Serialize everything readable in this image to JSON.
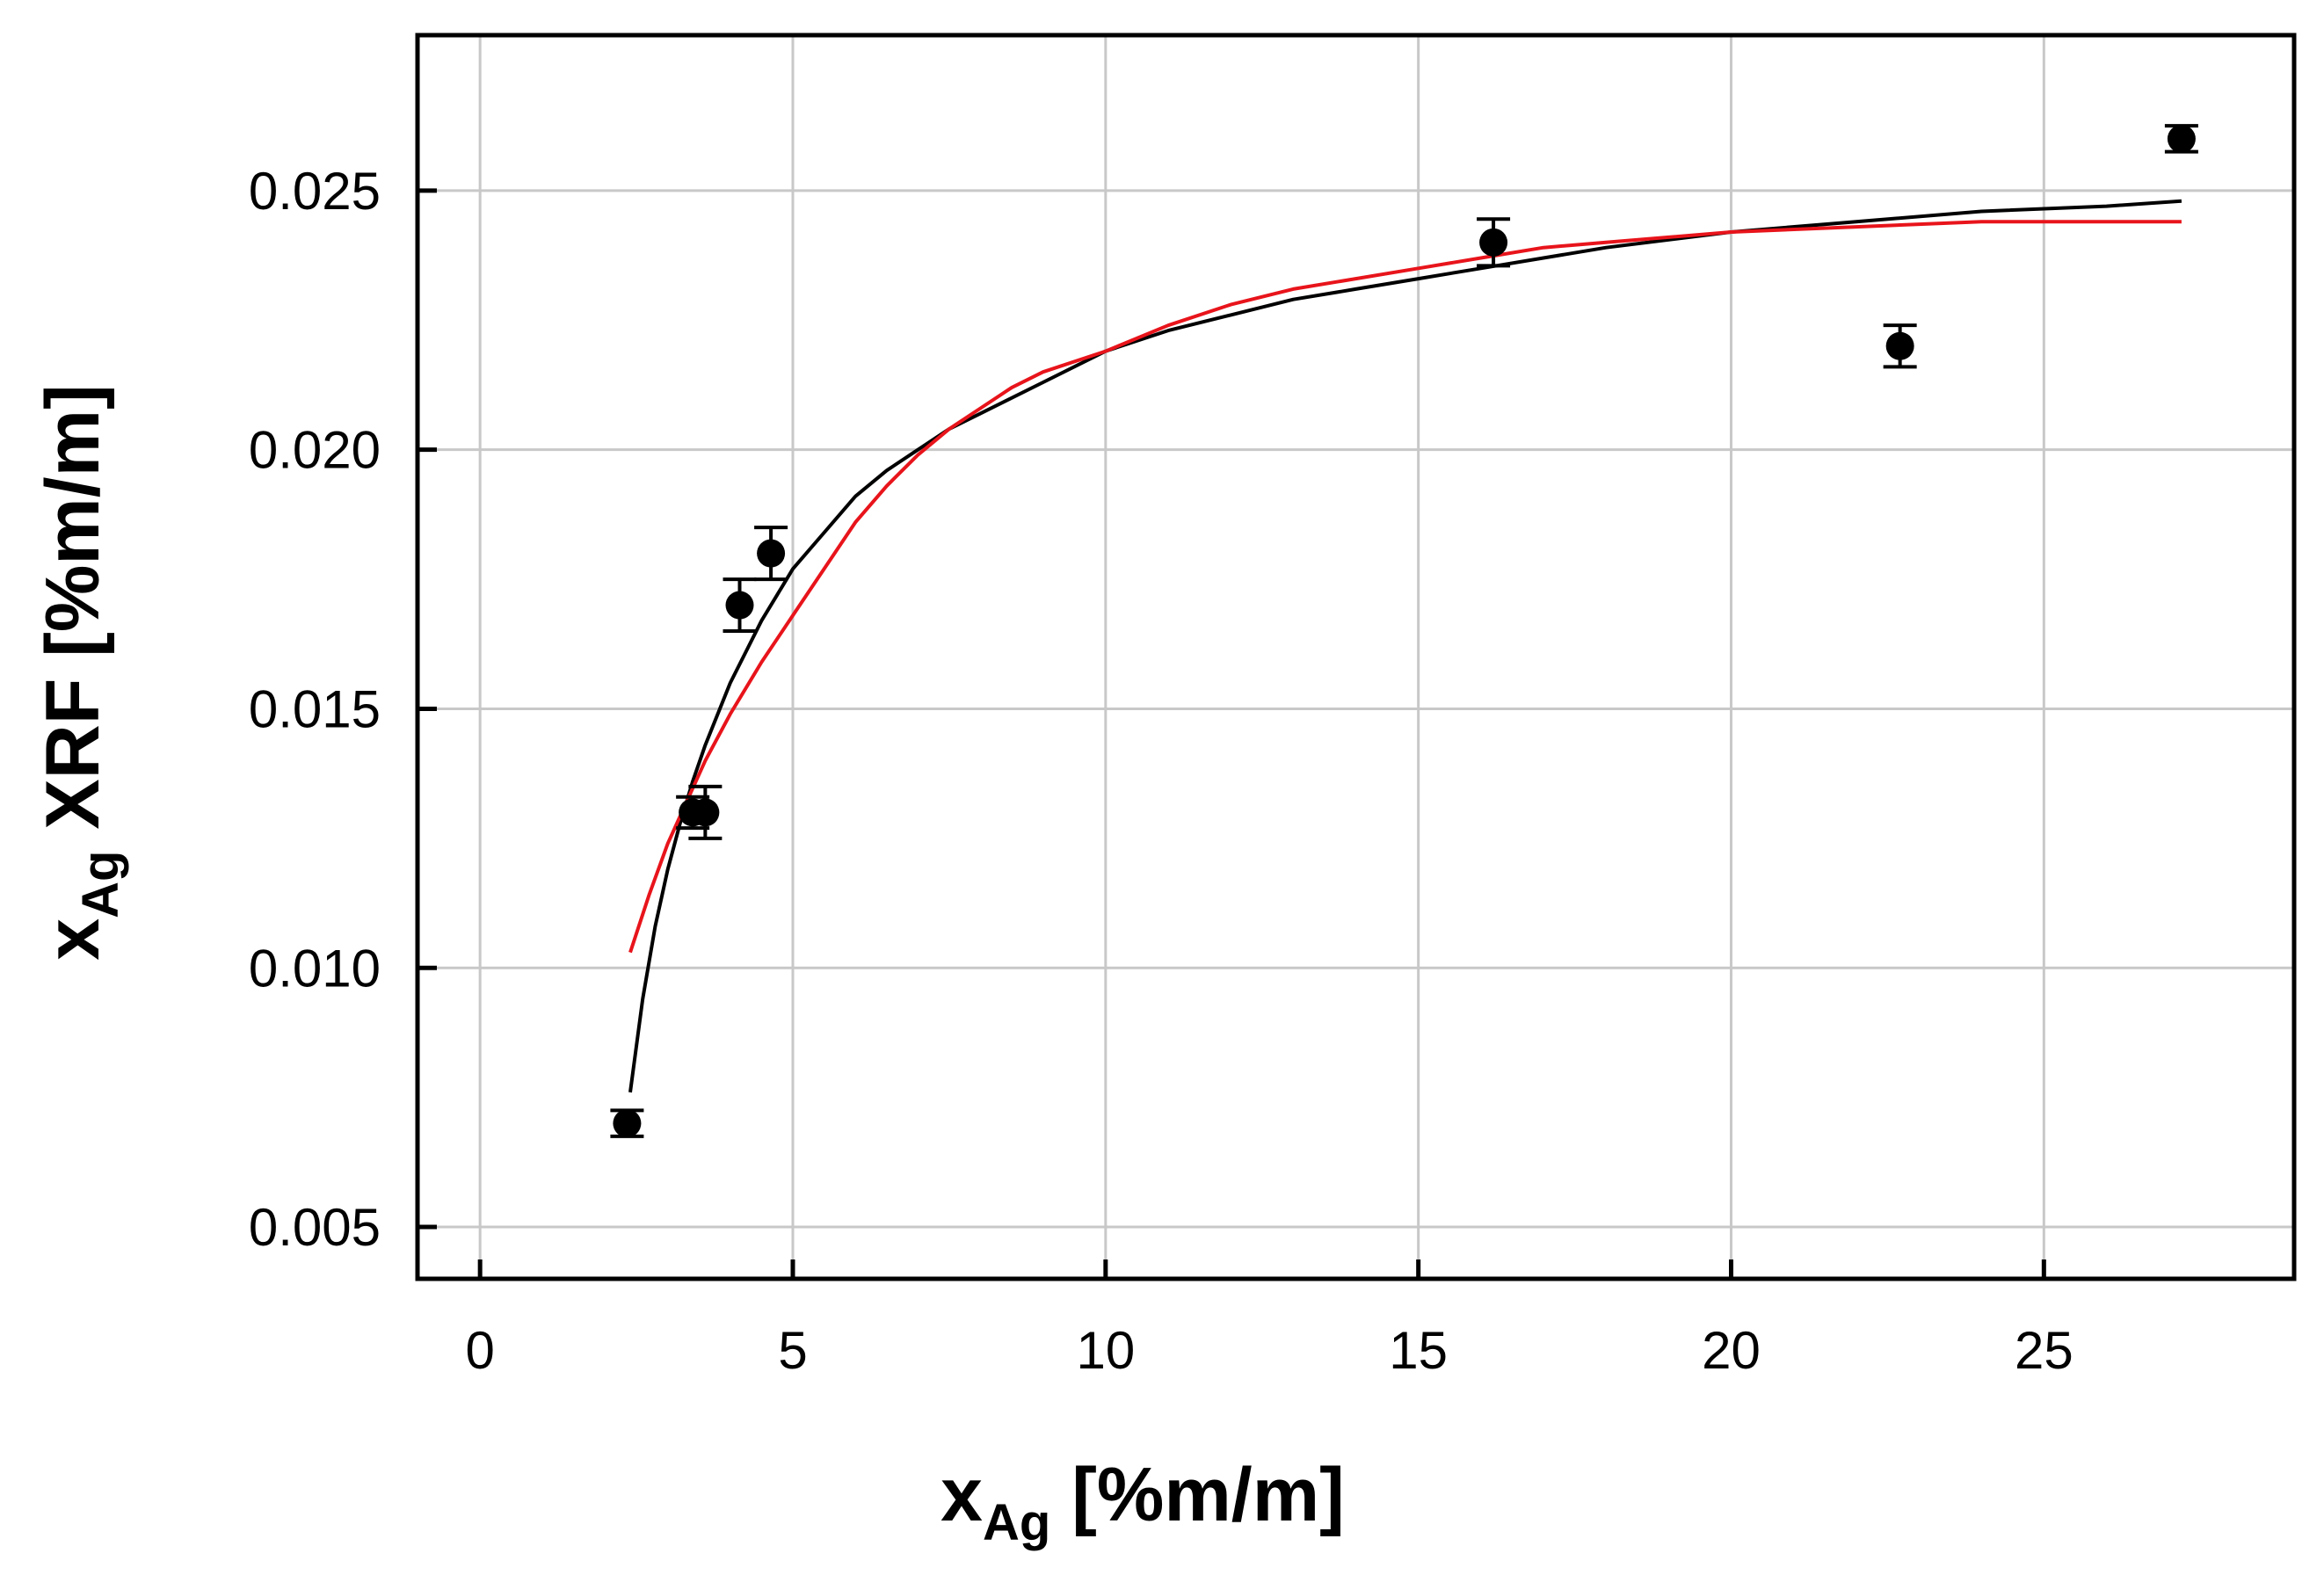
{
  "chart_data": {
    "type": "scatter",
    "xlabel": {
      "base": "x",
      "sub": "Ag",
      "rest": " [%m/m]"
    },
    "ylabel": {
      "base": "x",
      "sub": "Ag",
      "rest": " XRF [%m/m]"
    },
    "xlim": [
      -1,
      29
    ],
    "ylim": [
      0.004,
      0.028
    ],
    "xticks": [
      0,
      5,
      10,
      15,
      20,
      25
    ],
    "xtick_labels": [
      "0",
      "5",
      "10",
      "15",
      "20",
      "25"
    ],
    "yticks": [
      0.005,
      0.01,
      0.015,
      0.02,
      0.025
    ],
    "ytick_labels": [
      "0.005",
      "0.010",
      "0.015",
      "0.020",
      "0.025"
    ],
    "grid": true,
    "colors": {
      "points": "#000000",
      "fit_black": "#000000",
      "fit_red": "#e8141b",
      "grid": "#c8c8c8"
    },
    "points": [
      {
        "x": 2.35,
        "y": 0.007,
        "err": 0.00025
      },
      {
        "x": 3.4,
        "y": 0.013,
        "err": 0.0003
      },
      {
        "x": 3.6,
        "y": 0.013,
        "err": 0.0005
      },
      {
        "x": 4.15,
        "y": 0.017,
        "err": 0.0005
      },
      {
        "x": 4.65,
        "y": 0.018,
        "err": 0.0005
      },
      {
        "x": 16.2,
        "y": 0.024,
        "err": 0.00045
      },
      {
        "x": 22.7,
        "y": 0.022,
        "err": 0.0004
      },
      {
        "x": 27.2,
        "y": 0.026,
        "err": 0.00025
      }
    ],
    "series": [
      {
        "color": "#000000",
        "x": [
          2.4,
          2.6,
          2.8,
          3.0,
          3.2,
          3.4,
          3.6,
          3.8,
          4.0,
          4.25,
          4.5,
          4.75,
          5.0,
          5.5,
          6.0,
          6.5,
          7.0,
          7.5,
          8.0,
          9.0,
          10.0,
          11.0,
          12.0,
          13.0,
          14.0,
          15.0,
          16.0,
          17.0,
          18.0,
          20.0,
          22.0,
          24.0,
          26.0,
          27.2
        ],
        "y": [
          0.0076,
          0.0094,
          0.0108,
          0.0119,
          0.0128,
          0.0136,
          0.0143,
          0.0149,
          0.0155,
          0.0161,
          0.0167,
          0.0172,
          0.0177,
          0.0184,
          0.0191,
          0.0196,
          0.02,
          0.0204,
          0.0207,
          0.0213,
          0.0219,
          0.0223,
          0.0226,
          0.0229,
          0.0231,
          0.0233,
          0.0235,
          0.0237,
          0.0239,
          0.0242,
          0.0244,
          0.0246,
          0.0247,
          0.0248
        ]
      },
      {
        "color": "#e8141b",
        "x": [
          2.4,
          2.7,
          3.0,
          3.3,
          3.6,
          4.0,
          4.5,
          5.0,
          5.5,
          6.0,
          6.5,
          7.0,
          7.5,
          8.0,
          8.5,
          9.0,
          10.0,
          11.0,
          12.0,
          13.0,
          14.0,
          15.0,
          16.0,
          17.0,
          18.0,
          20.0,
          22.0,
          24.0,
          26.0,
          27.2
        ],
        "y": [
          0.0103,
          0.0114,
          0.0124,
          0.0132,
          0.014,
          0.0149,
          0.0159,
          0.0168,
          0.0177,
          0.0186,
          0.0193,
          0.0199,
          0.0204,
          0.0208,
          0.0212,
          0.0215,
          0.0219,
          0.0224,
          0.0228,
          0.0231,
          0.0233,
          0.0235,
          0.0237,
          0.0239,
          0.024,
          0.0242,
          0.0243,
          0.0244,
          0.0244,
          0.0244
        ]
      }
    ]
  }
}
